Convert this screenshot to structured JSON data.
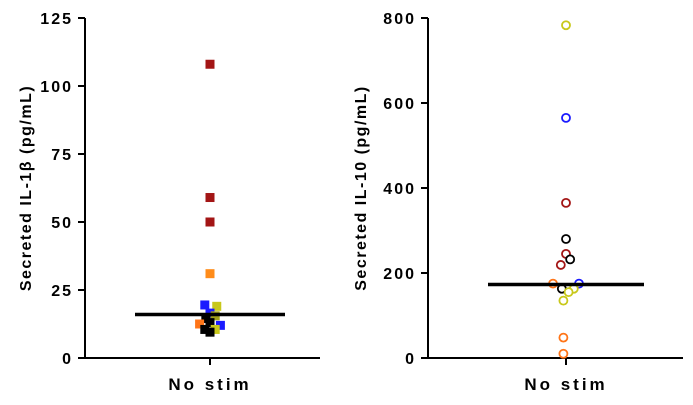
{
  "chart_data": [
    {
      "type": "scatter",
      "marker": "square-filled",
      "ylabel": "Secreted IL-1β (pg/mL)",
      "categories": [
        "No stim"
      ],
      "ylim": [
        0,
        125
      ],
      "yticks": [
        0,
        25,
        50,
        75,
        100,
        125
      ],
      "ytick_labels": [
        "0",
        "25",
        "50",
        "75",
        "100",
        "125"
      ],
      "summary_line": 16,
      "points": [
        {
          "x": 0.0,
          "y": 108,
          "color": "#a31515"
        },
        {
          "x": 0.0,
          "y": 59,
          "color": "#a31515"
        },
        {
          "x": 0.0,
          "y": 50,
          "color": "#a31515"
        },
        {
          "x": 0.0,
          "y": 31,
          "color": "#ff8c1a"
        },
        {
          "x": -0.1,
          "y": 19.5,
          "color": "#1a1aff"
        },
        {
          "x": 0.13,
          "y": 19,
          "color": "#c8c81a"
        },
        {
          "x": 0.0,
          "y": 16.5,
          "color": "#1a1aff"
        },
        {
          "x": 0.1,
          "y": 15.5,
          "color": "#a0a01a"
        },
        {
          "x": -0.08,
          "y": 14.5,
          "color": "#000000"
        },
        {
          "x": 0.0,
          "y": 13,
          "color": "#000000"
        },
        {
          "x": -0.2,
          "y": 12.5,
          "color": "#ff7518"
        },
        {
          "x": 0.2,
          "y": 12,
          "color": "#1a1aff"
        },
        {
          "x": -0.1,
          "y": 10.5,
          "color": "#000000"
        },
        {
          "x": 0.1,
          "y": 10.5,
          "color": "#c8c81a"
        },
        {
          "x": 0.0,
          "y": 9.5,
          "color": "#000000"
        }
      ]
    },
    {
      "type": "scatter",
      "marker": "circle-open",
      "ylabel": "Secreted IL-10 (pg/mL)",
      "categories": [
        "No stim"
      ],
      "ylim": [
        0,
        800
      ],
      "yticks": [
        0,
        200,
        400,
        600,
        800
      ],
      "ytick_labels": [
        "0",
        "200",
        "400",
        "600",
        "800"
      ],
      "summary_line": 173,
      "points": [
        {
          "x": 0.0,
          "y": 783,
          "color": "#c8c81a"
        },
        {
          "x": 0.0,
          "y": 565,
          "color": "#1a1aff"
        },
        {
          "x": 0.0,
          "y": 365,
          "color": "#a31515"
        },
        {
          "x": 0.0,
          "y": 280,
          "color": "#000000"
        },
        {
          "x": 0.0,
          "y": 245,
          "color": "#a31515"
        },
        {
          "x": 0.08,
          "y": 232,
          "color": "#000000"
        },
        {
          "x": -0.1,
          "y": 219,
          "color": "#a31515"
        },
        {
          "x": -0.25,
          "y": 175,
          "color": "#ff7518"
        },
        {
          "x": 0.25,
          "y": 175,
          "color": "#1a1aff"
        },
        {
          "x": -0.08,
          "y": 163,
          "color": "#000000"
        },
        {
          "x": 0.15,
          "y": 163,
          "color": "#c8c81a"
        },
        {
          "x": 0.05,
          "y": 155,
          "color": "#c8c81a"
        },
        {
          "x": -0.05,
          "y": 135,
          "color": "#c8c81a"
        },
        {
          "x": -0.05,
          "y": 48,
          "color": "#ff7518"
        },
        {
          "x": -0.05,
          "y": 10,
          "color": "#ff7518"
        }
      ]
    }
  ]
}
